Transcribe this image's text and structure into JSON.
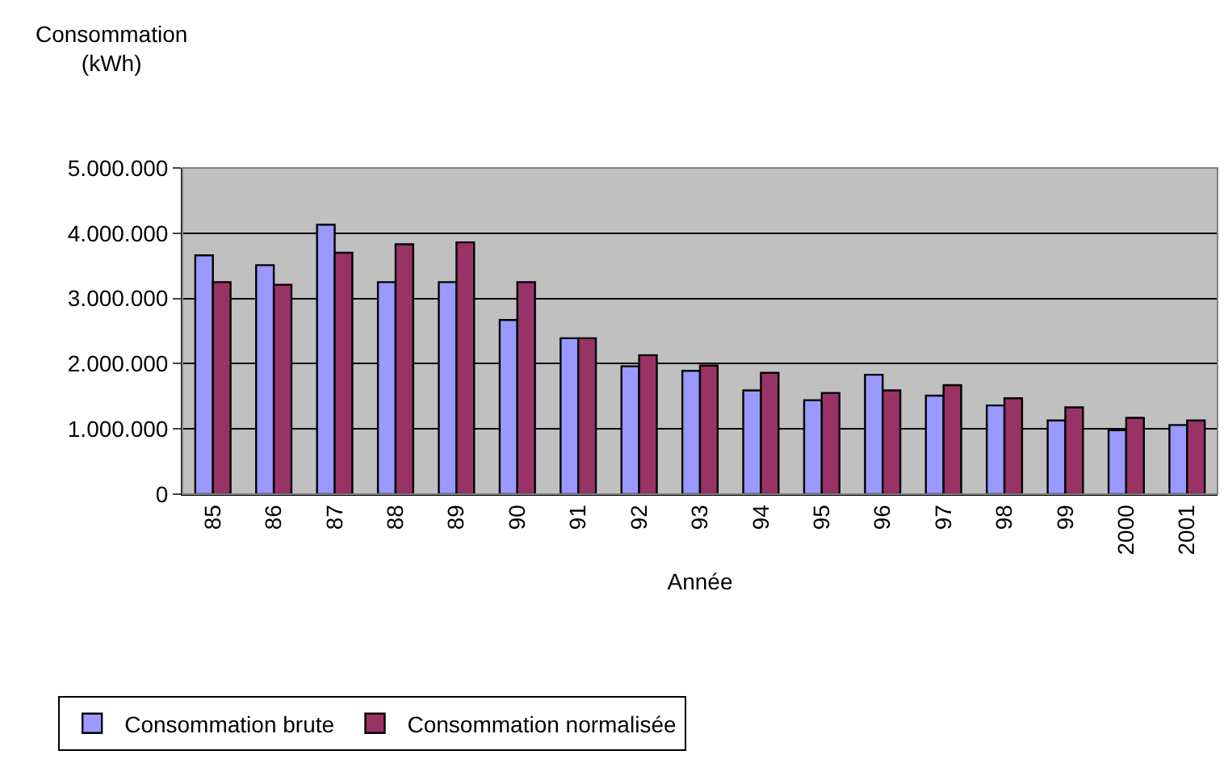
{
  "chart_data": {
    "type": "bar",
    "xlabel": "Année",
    "ylabel": "Consommation (kWh)",
    "categories": [
      "85",
      "86",
      "87",
      "88",
      "89",
      "90",
      "91",
      "92",
      "93",
      "94",
      "95",
      "96",
      "97",
      "98",
      "99",
      "2000",
      "2001"
    ],
    "series": [
      {
        "name": "Consommation brute",
        "color": "#9999ff",
        "values": [
          3660000,
          3510000,
          4130000,
          3250000,
          3250000,
          2670000,
          2390000,
          1960000,
          1890000,
          1590000,
          1440000,
          1830000,
          1510000,
          1360000,
          1130000,
          980000,
          1060000
        ]
      },
      {
        "name": "Consommation normalisée",
        "color": "#993366",
        "values": [
          3250000,
          3210000,
          3700000,
          3830000,
          3860000,
          3250000,
          2390000,
          2130000,
          1970000,
          1860000,
          1550000,
          1590000,
          1670000,
          1470000,
          1330000,
          1170000,
          1130000
        ]
      }
    ],
    "ylim": [
      0,
      5000000
    ],
    "yticks": [
      {
        "value": 0,
        "label": "0"
      },
      {
        "value": 1000000,
        "label": "1.000.000"
      },
      {
        "value": 2000000,
        "label": "2.000.000"
      },
      {
        "value": 3000000,
        "label": "3.000.000"
      },
      {
        "value": 4000000,
        "label": "4.000.000"
      },
      {
        "value": 5000000,
        "label": "5.000.000"
      }
    ],
    "grid": "y",
    "legend": "bottom left"
  }
}
